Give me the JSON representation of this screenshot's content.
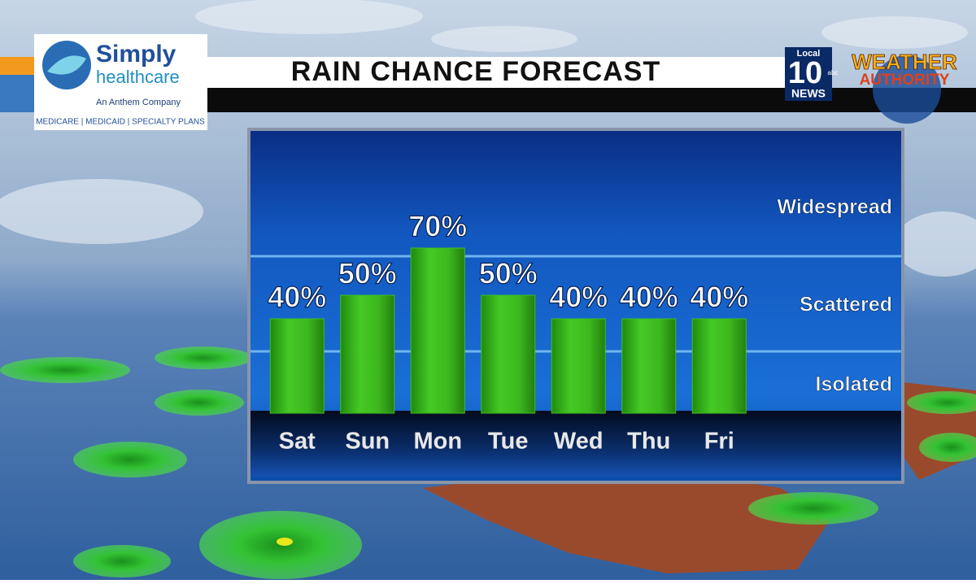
{
  "chart_data": {
    "type": "bar",
    "title": "RAIN CHANCE FORECAST",
    "categories": [
      "Sat",
      "Sun",
      "Mon",
      "Tue",
      "Wed",
      "Thu",
      "Fri"
    ],
    "values": [
      40,
      50,
      70,
      50,
      40,
      40,
      40
    ],
    "value_labels": [
      "40%",
      "50%",
      "70%",
      "50%",
      "40%",
      "40%",
      "40%"
    ],
    "color": "#3fbf1f",
    "ylim": [
      0,
      100
    ],
    "annotations": [
      "Widespread",
      "Scattered",
      "Isolated"
    ]
  },
  "sponsor": {
    "name_line1": "Simply",
    "name_line2": "healthcare",
    "tagline": "An Anthem Company",
    "plans": "MEDICARE  |  MEDICAID  |  SPECIALTY PLANS"
  },
  "station": {
    "local": "Local",
    "channel": "10",
    "network": "abc",
    "news": "NEWS",
    "brand_line1": "WEATHER",
    "brand_line2": "AUTHORITY"
  }
}
